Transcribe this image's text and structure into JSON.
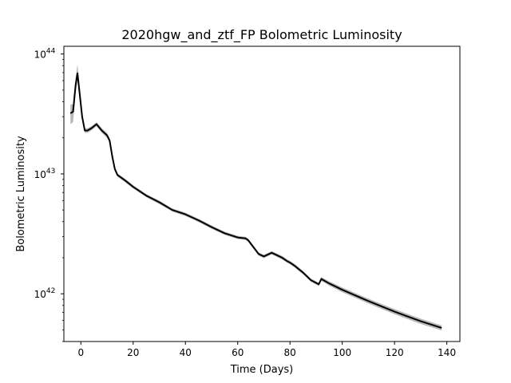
{
  "chart_data": {
    "type": "line",
    "title": "2020hgw_and_ztf_FP Bolometric Luminosity",
    "xlabel": "Time (Days)",
    "ylabel": "Bolometric Luminosity",
    "xlim": [
      -6.5,
      145
    ],
    "ylim": [
      4e+41,
      1.16e+44
    ],
    "yscale": "log",
    "grid": false,
    "x_ticks": [
      0,
      20,
      40,
      60,
      80,
      100,
      120,
      140
    ],
    "y_ticks": [
      {
        "base": "10",
        "exp": "42",
        "value": 1e+42
      },
      {
        "base": "10",
        "exp": "43",
        "value": 1e+43
      },
      {
        "base": "10",
        "exp": "44",
        "value": 1e+44
      }
    ],
    "line_color": "#000000",
    "band_color": "#b0b0b0",
    "series": [
      {
        "x": [
          -4,
          -3,
          -2,
          -1.3,
          -0.5,
          0.5,
          1.5,
          2.5,
          4,
          6,
          8,
          10,
          11,
          12,
          13,
          14,
          17,
          20,
          25,
          30,
          35,
          40,
          45,
          50,
          55,
          60,
          63,
          64,
          66,
          68,
          70,
          72,
          73,
          75,
          77,
          79,
          80,
          82,
          85,
          88,
          91,
          92,
          95,
          100,
          110,
          120,
          130,
          138
        ],
        "y": [
          3.2e+43,
          3.3e+43,
          5.5e+43,
          6.9e+43,
          4.8e+43,
          3e+43,
          2.3e+43,
          2.3e+43,
          2.4e+43,
          2.6e+43,
          2.3e+43,
          2.1e+43,
          1.9e+43,
          1.4e+43,
          1.1e+43,
          9.8e+42,
          8.8e+42,
          7.8e+42,
          6.6e+42,
          5.8e+42,
          5e+42,
          4.6e+42,
          4.1e+42,
          3.6e+42,
          3.2e+42,
          2.95e+42,
          2.9e+42,
          2.8e+42,
          2.45e+42,
          2.15e+42,
          2.05e+42,
          2.15e+42,
          2.2e+42,
          2.1e+42,
          2e+42,
          1.87e+42,
          1.82e+42,
          1.7e+42,
          1.5e+42,
          1.3e+42,
          1.2e+42,
          1.33e+42,
          1.22e+42,
          1.08e+42,
          8.7e+41,
          7.1e+41,
          5.9e+41,
          5.2e+41
        ],
        "y_lower": [
          2.6e+43,
          2.7e+43,
          4.7e+43,
          6e+43,
          4.3e+43,
          2.8e+43,
          2.2e+43,
          2.2e+43,
          2.3e+43,
          2.5e+43,
          2.2e+43,
          2e+43,
          1.82e+43,
          1.35e+43,
          1.06e+43,
          9.5e+42,
          8.5e+42,
          7.55e+42,
          6.4e+42,
          5.6e+42,
          4.85e+42,
          4.45e+42,
          3.97e+42,
          3.48e+42,
          3.1e+42,
          2.86e+42,
          2.81e+42,
          2.71e+42,
          2.37e+42,
          2.08e+42,
          1.98e+42,
          2.08e+42,
          2.13e+42,
          2.03e+42,
          1.93e+42,
          1.81e+42,
          1.76e+42,
          1.64e+42,
          1.45e+42,
          1.26e+42,
          1.16e+42,
          1.28e+42,
          1.17e+42,
          1.03e+42,
          8.3e+41,
          6.75e+41,
          5.6e+41,
          4.95e+41
        ],
        "y_upper": [
          3.8e+43,
          3.8e+43,
          6.3e+43,
          8.2e+43,
          5.6e+43,
          3.2e+43,
          2.4e+43,
          2.4e+43,
          2.5e+43,
          2.7e+43,
          2.4e+43,
          2.2e+43,
          1.98e+43,
          1.45e+43,
          1.14e+43,
          1.01e+43,
          9.1e+42,
          8.05e+42,
          6.8e+42,
          6e+42,
          5.15e+42,
          4.75e+42,
          4.23e+42,
          3.72e+42,
          3.3e+42,
          3.04e+42,
          2.99e+42,
          2.89e+42,
          2.53e+42,
          2.22e+42,
          2.12e+42,
          2.22e+42,
          2.27e+42,
          2.17e+42,
          2.07e+42,
          1.93e+42,
          1.88e+42,
          1.76e+42,
          1.55e+42,
          1.34e+42,
          1.24e+42,
          1.38e+42,
          1.27e+42,
          1.13e+42,
          9.1e+41,
          7.45e+41,
          6.2e+41,
          5.45e+41
        ]
      }
    ]
  }
}
